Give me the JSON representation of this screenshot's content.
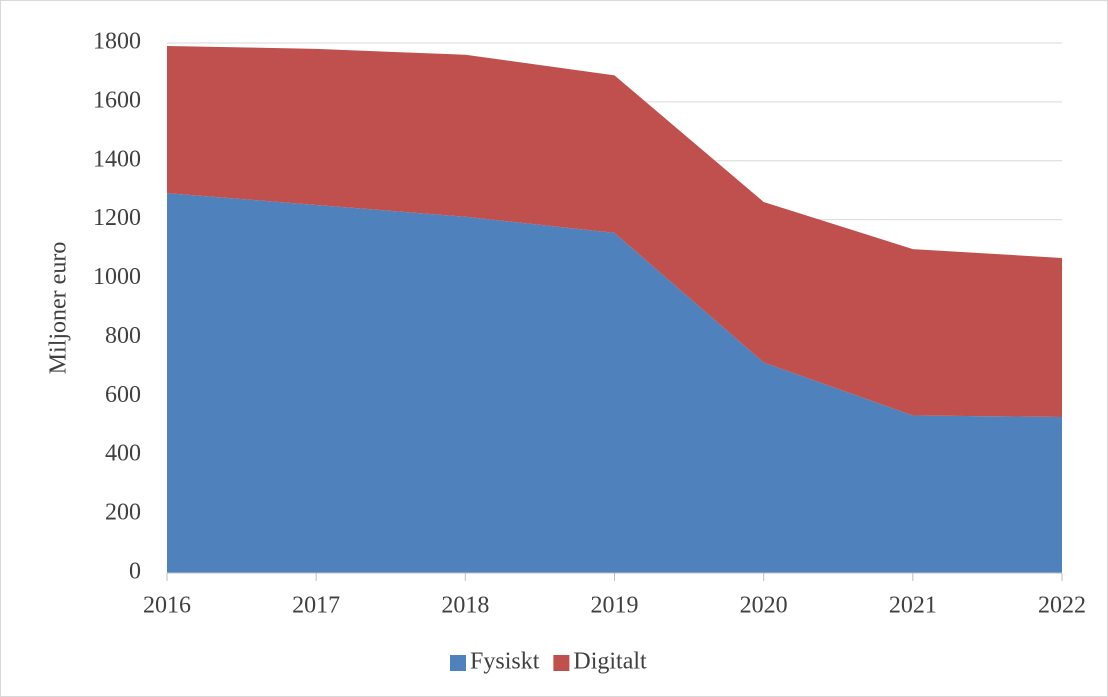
{
  "chart_data": {
    "type": "stacked_area",
    "categories": [
      "2016",
      "2017",
      "2018",
      "2019",
      "2020",
      "2021",
      "2022"
    ],
    "series": [
      {
        "name": "Fysiskt",
        "color": "#4f81bd",
        "values": [
          1290,
          1250,
          1210,
          1155,
          715,
          535,
          530
        ]
      },
      {
        "name": "Digitalt",
        "color": "#c0504d",
        "values": [
          500,
          530,
          550,
          535,
          545,
          565,
          540
        ]
      }
    ],
    "y_label": "Miljoner euro",
    "ylim": [
      0,
      1800
    ],
    "yticks": [
      0,
      200,
      400,
      600,
      800,
      1000,
      1200,
      1400,
      1600,
      1800
    ],
    "grid": true,
    "legend": "bottom"
  }
}
